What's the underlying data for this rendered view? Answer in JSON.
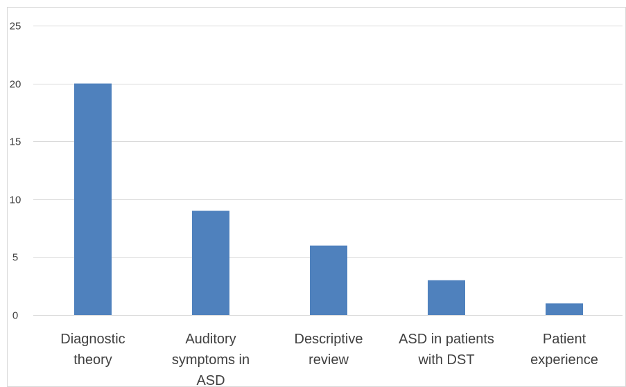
{
  "chart_data": {
    "type": "bar",
    "categories": [
      [
        "Diagnostic",
        "theory"
      ],
      [
        "Auditory",
        "symptoms in",
        "ASD"
      ],
      [
        "Descriptive",
        "review"
      ],
      [
        "ASD in patients",
        "with DST"
      ],
      [
        "Patient",
        "experience"
      ]
    ],
    "values": [
      20,
      9,
      6,
      3,
      1
    ],
    "ylim": [
      0,
      25
    ],
    "yticks": [
      0,
      5,
      10,
      15,
      20,
      25
    ],
    "grid": true,
    "title": "",
    "xlabel": "",
    "ylabel": ""
  },
  "colors": {
    "bar": "#4f81bd",
    "grid": "#d9d9d9",
    "text": "#404040",
    "frame": "#d9d9d9"
  }
}
